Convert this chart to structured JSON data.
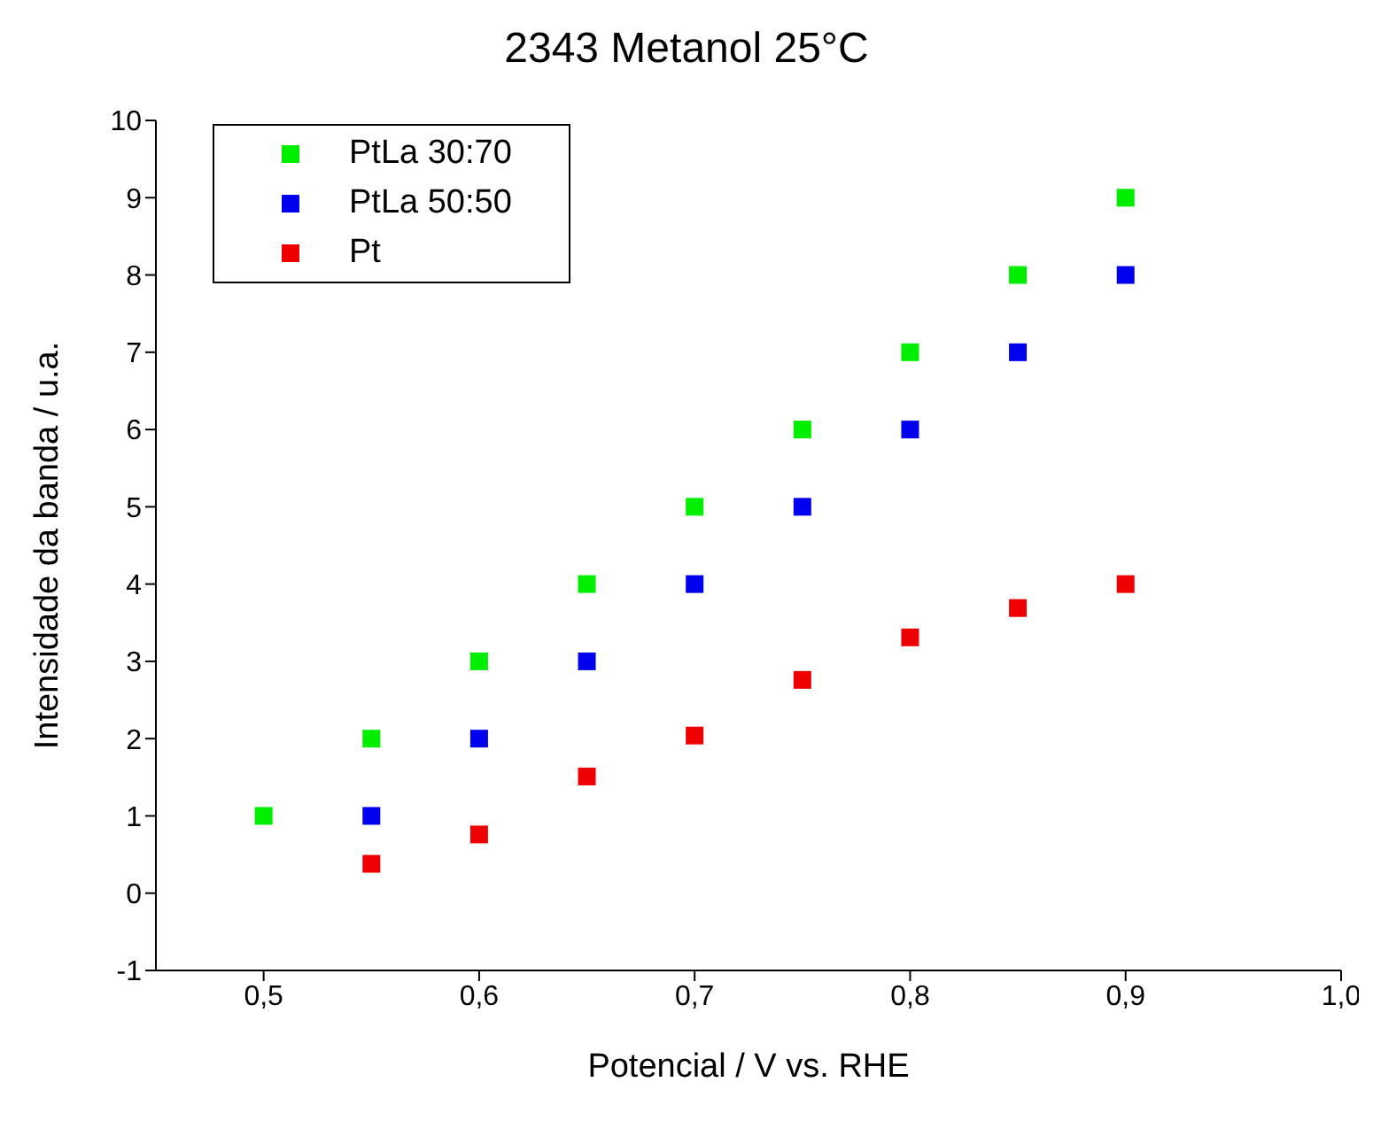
{
  "chart_data": {
    "type": "scatter",
    "title": "2343 Metanol 25°C",
    "xlabel": "Potencial / V vs. RHE",
    "ylabel": "Intensidade da banda / u.a.",
    "series": [
      {
        "name": "PtLa 30:70",
        "color": "#00ee00",
        "x": [
          0.5,
          0.55,
          0.6,
          0.65,
          0.7,
          0.75,
          0.8,
          0.85,
          0.9
        ],
        "values": [
          1,
          2,
          3,
          4,
          5,
          6,
          7,
          8,
          9
        ]
      },
      {
        "name": "PtLa 50:50",
        "color": "#0000ee",
        "x": [
          0.55,
          0.6,
          0.65,
          0.7,
          0.75,
          0.8,
          0.85,
          0.9
        ],
        "values": [
          1,
          2,
          3,
          4,
          5,
          6,
          7,
          8
        ]
      },
      {
        "name": "Pt",
        "color": "#ee0000",
        "x": [
          0.55,
          0.6,
          0.65,
          0.7,
          0.75,
          0.8,
          0.85,
          0.9
        ],
        "values": [
          0.38,
          0.76,
          1.51,
          2.04,
          2.76,
          3.31,
          3.69,
          4.0
        ]
      }
    ],
    "xlim": [
      0.45,
      1.0
    ],
    "xticks": [
      {
        "value": 0.5,
        "label": "0,5"
      },
      {
        "value": 0.6,
        "label": "0,6"
      },
      {
        "value": 0.7,
        "label": "0,7"
      },
      {
        "value": 0.8,
        "label": "0,8"
      },
      {
        "value": 0.9,
        "label": "0,9"
      },
      {
        "value": 1.0,
        "label": "1,0"
      }
    ],
    "ylim": [
      -1,
      10
    ],
    "yticks": [
      -1,
      0,
      1,
      2,
      3,
      4,
      5,
      6,
      7,
      8,
      9,
      10
    ],
    "legend": "top left",
    "marker": "square",
    "grid": false
  }
}
